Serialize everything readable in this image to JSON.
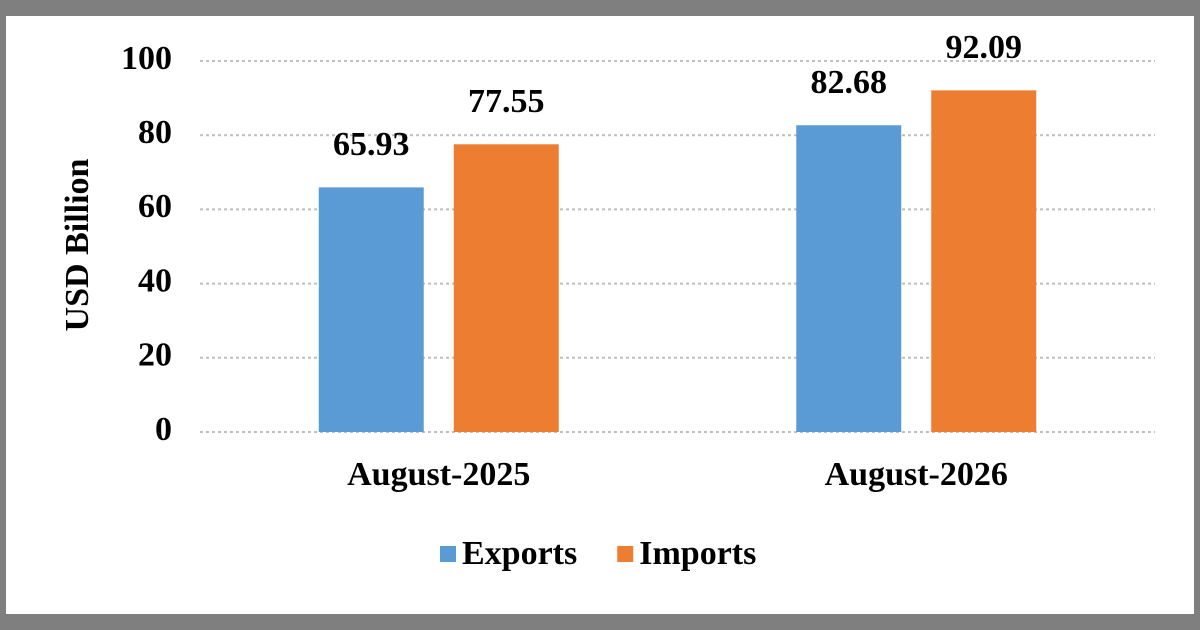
{
  "chart_data": {
    "type": "bar",
    "y_label": "USD Billion",
    "categories": [
      "August-2025",
      "August-2026"
    ],
    "series": [
      {
        "name": "Exports",
        "color": "#5b9bd5",
        "values": [
          65.93,
          82.68
        ]
      },
      {
        "name": "Imports",
        "color": "#ed7d31",
        "values": [
          77.55,
          92.09
        ]
      }
    ],
    "ylim": [
      0,
      100
    ],
    "yticks": [
      0,
      20,
      40,
      60,
      80,
      100
    ],
    "grid": true,
    "legend": "bottom"
  }
}
